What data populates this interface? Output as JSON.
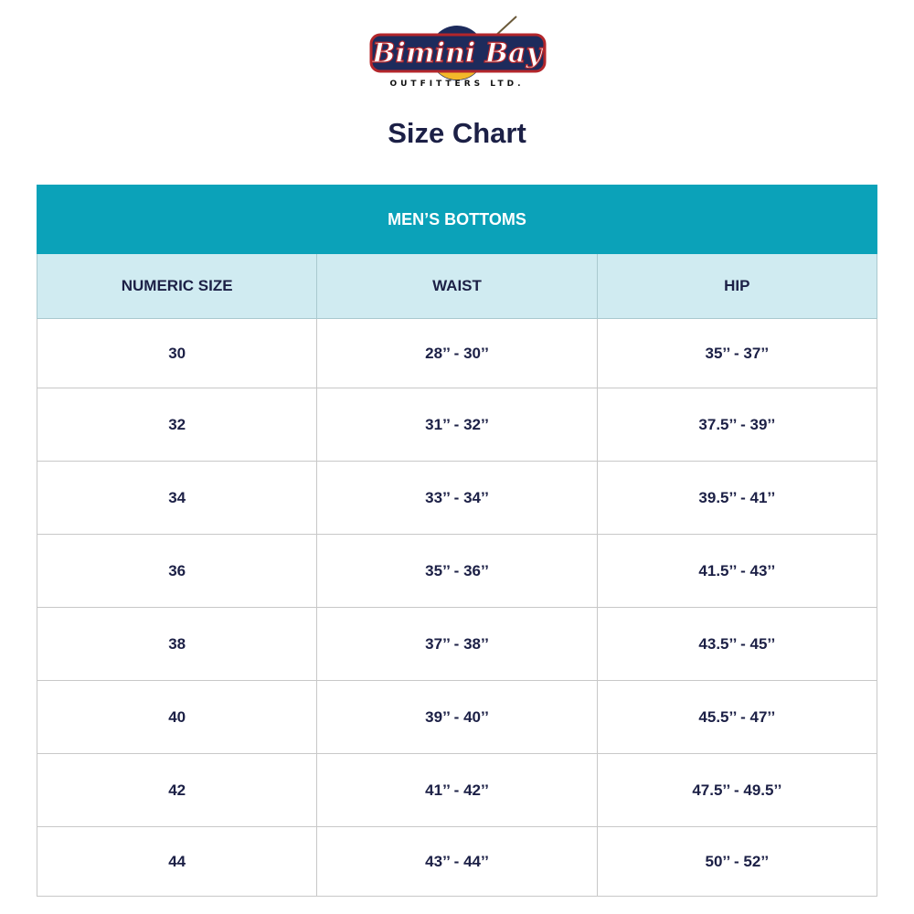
{
  "logo": {
    "text": "Bimini Bay",
    "subtext": "OUTFITTERS LTD.",
    "colors": {
      "red": "#b3262b",
      "navy": "#1d2b5c",
      "gold": "#f2b82a"
    }
  },
  "title": "Size Chart",
  "table": {
    "caption": "MEN’S BOTTOMS",
    "headers": [
      "NUMERIC SIZE",
      "WAIST",
      "HIP"
    ],
    "rows": [
      [
        "30",
        "28’’ - 30’’",
        "35’’ - 37’’"
      ],
      [
        "32",
        "31’’ - 32’’",
        "37.5’’ - 39’’"
      ],
      [
        "34",
        "33’’ - 34’’",
        "39.5’’ - 41’’"
      ],
      [
        "36",
        "35’’ - 36’’",
        "41.5’’ - 43’’"
      ],
      [
        "38",
        "37’’ - 38’’",
        "43.5’’ - 45’’"
      ],
      [
        "40",
        "39’’ - 40’’",
        "45.5’’ - 47’’"
      ],
      [
        "42",
        "41’’ - 42’’",
        "47.5’’ - 49.5’’"
      ],
      [
        "44",
        "43’’ - 44’’",
        "50’’ - 52’’"
      ]
    ]
  }
}
